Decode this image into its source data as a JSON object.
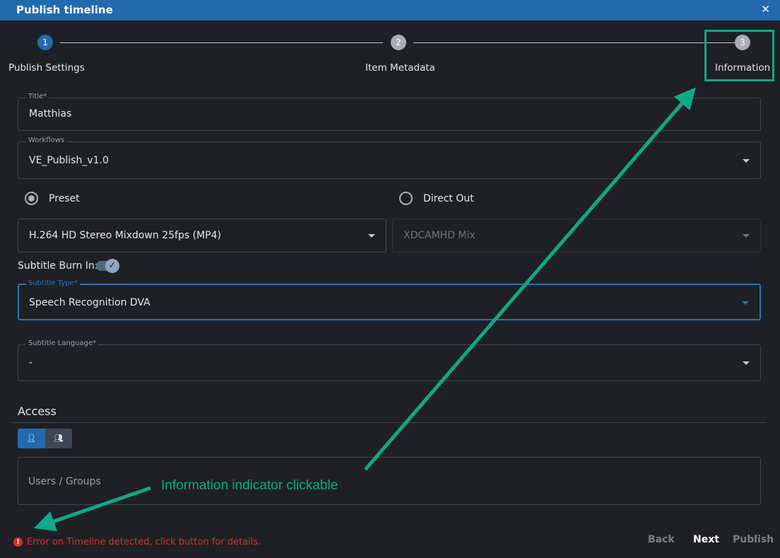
{
  "dialog": {
    "title": "Publish timeline",
    "close_icon": "close-icon"
  },
  "stepper": {
    "steps": [
      {
        "number": "1",
        "label": "Publish Settings",
        "state": "active"
      },
      {
        "number": "2",
        "label": "Item Metadata",
        "state": "inactive"
      },
      {
        "number": "3",
        "label": "Information",
        "state": "inactive"
      }
    ]
  },
  "form": {
    "title": {
      "label": "Title*",
      "value": "Matthias"
    },
    "workflows": {
      "label": "Workflows",
      "value": "VE_Publish_v1.0"
    },
    "output_mode": {
      "preset_label": "Preset",
      "direct_out_label": "Direct Out",
      "selected": "Preset"
    },
    "preset": {
      "value": "H.264 HD Stereo Mixdown 25fps (MP4)"
    },
    "direct_out": {
      "value": "XDCAMHD Mix"
    },
    "subtitle_burn_in": {
      "label": "Subtitle Burn In:",
      "enabled": true
    },
    "subtitle_type": {
      "label": "Subtitle Type*",
      "value": "Speech Recognition DVA"
    },
    "subtitle_language": {
      "label": "Subtitle Language*",
      "value": "-"
    }
  },
  "access": {
    "heading": "Access",
    "toggle": [
      "user-icon",
      "group-icon"
    ],
    "selected": "user-icon",
    "users_groups_placeholder": "Users / Groups"
  },
  "footer": {
    "error": "Error on Timeline detected, click button for details.",
    "back": "Back",
    "next": "Next",
    "publish": "Publish"
  },
  "annotation": {
    "text": "Information indicator clickable",
    "color": "#0fa887"
  },
  "colors": {
    "accent": "#2369ae",
    "error": "#d93025",
    "background": "#1e2025"
  }
}
